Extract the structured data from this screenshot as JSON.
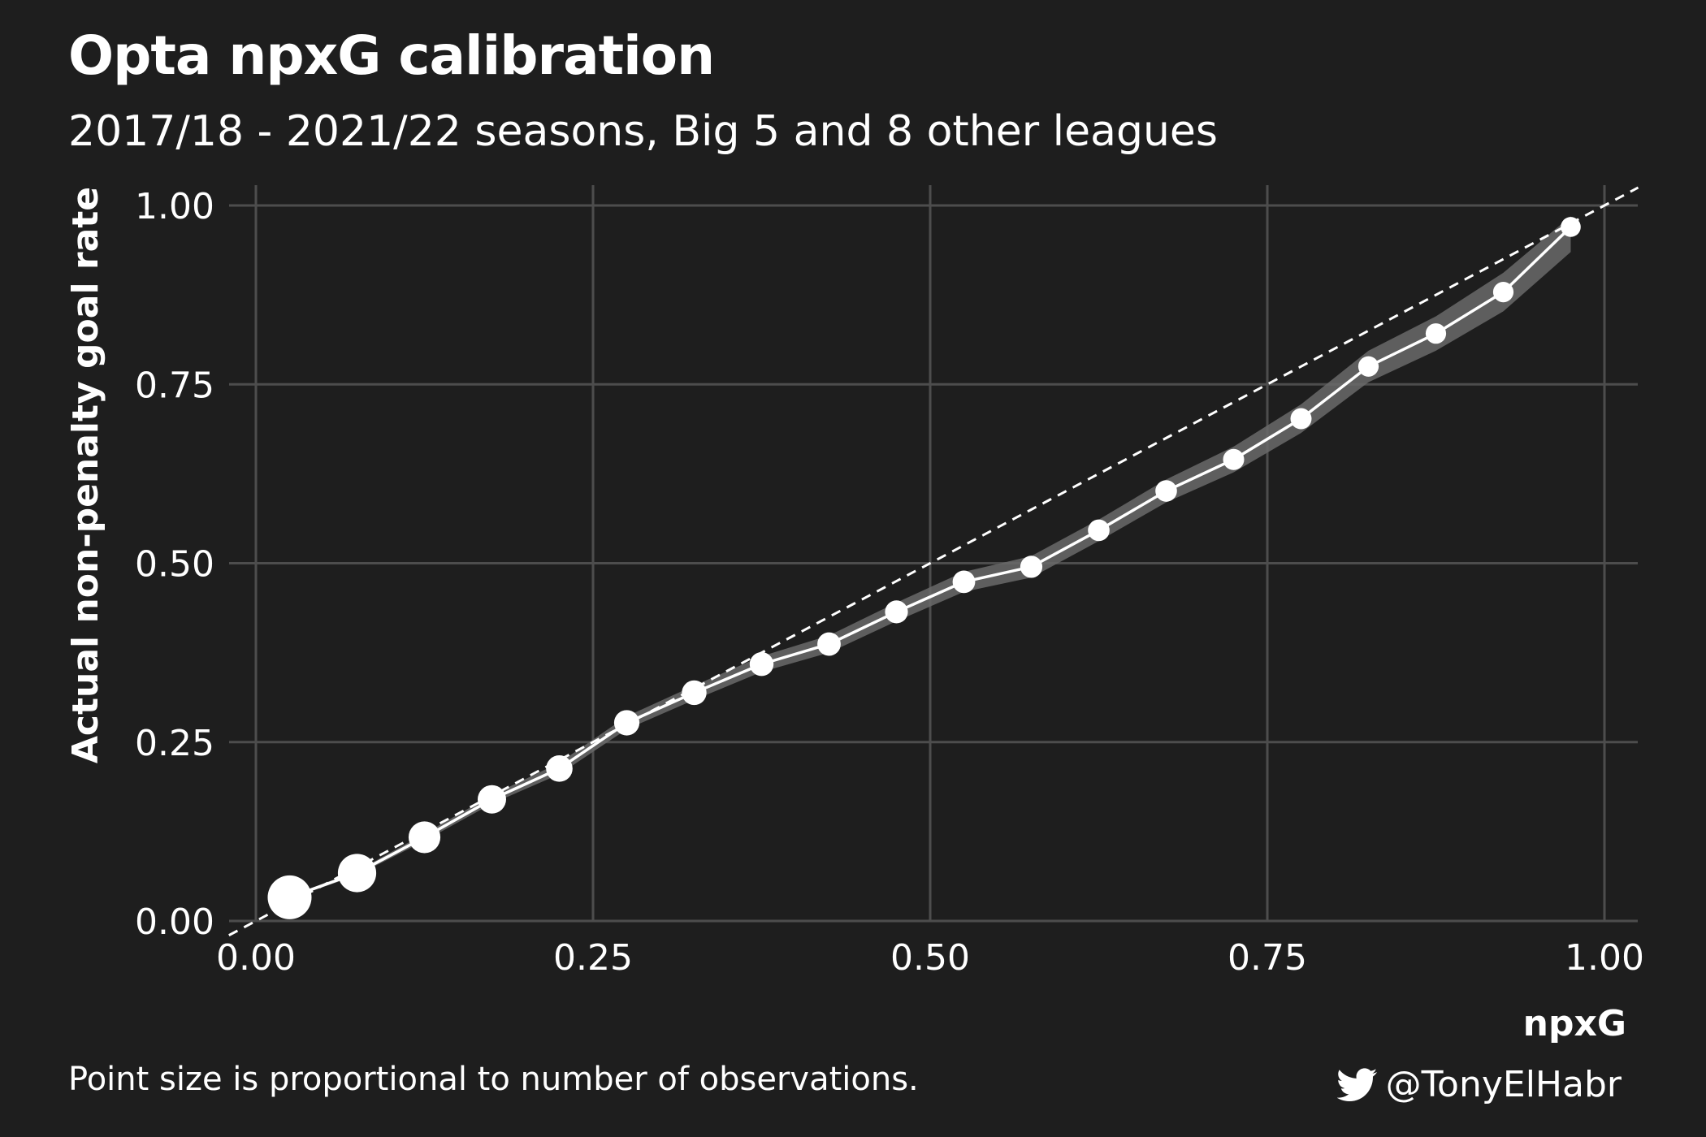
{
  "header": {
    "title": "Opta npxG calibration",
    "subtitle": "2017/18 - 2021/22 seasons, Big 5 and 8 other leagues"
  },
  "footer": {
    "caption": "Point size is proportional to number of observations.",
    "credit": "@TonyElHabr",
    "credit_icon": "twitter-bird-icon"
  },
  "colors": {
    "background": "#1e1e1e",
    "grid": "#4d4d4d",
    "line": "#ffffff",
    "ribbon": "#6a6a6a",
    "text": "#ffffff"
  },
  "chart_data": {
    "type": "line",
    "xlabel": "npxG",
    "ylabel": "Actual non-penalty goal rate",
    "xlim": [
      0,
      1
    ],
    "ylim": [
      0,
      1
    ],
    "x_ticks": [
      "0.00",
      "0.25",
      "0.50",
      "0.75",
      "1.00"
    ],
    "y_ticks": [
      "0.00",
      "0.25",
      "0.50",
      "0.75",
      "1.00"
    ],
    "grid": true,
    "reference_line": "y = x (dashed)",
    "point_size_encodes": "number of observations",
    "series": [
      {
        "x": [
          0.025,
          0.075,
          0.125,
          0.175,
          0.225,
          0.275,
          0.325,
          0.375,
          0.425,
          0.475,
          0.525,
          0.575,
          0.625,
          0.675,
          0.725,
          0.775,
          0.825,
          0.875,
          0.925,
          0.975
        ],
        "y": [
          0.033,
          0.067,
          0.117,
          0.17,
          0.213,
          0.277,
          0.319,
          0.359,
          0.387,
          0.432,
          0.474,
          0.495,
          0.546,
          0.601,
          0.645,
          0.702,
          0.775,
          0.821,
          0.879,
          0.97
        ],
        "ci_lower": [
          0.031,
          0.064,
          0.112,
          0.164,
          0.205,
          0.268,
          0.309,
          0.348,
          0.375,
          0.419,
          0.46,
          0.48,
          0.531,
          0.585,
          0.627,
          0.682,
          0.753,
          0.797,
          0.852,
          0.935
        ],
        "ci_upper": [
          0.035,
          0.07,
          0.122,
          0.176,
          0.221,
          0.286,
          0.329,
          0.37,
          0.399,
          0.445,
          0.488,
          0.51,
          0.561,
          0.617,
          0.663,
          0.722,
          0.797,
          0.845,
          0.906,
          0.985
        ],
        "relative_size": [
          1.0,
          0.7,
          0.42,
          0.3,
          0.24,
          0.21,
          0.19,
          0.17,
          0.16,
          0.15,
          0.14,
          0.13,
          0.12,
          0.12,
          0.11,
          0.11,
          0.1,
          0.1,
          0.1,
          0.09
        ]
      }
    ]
  }
}
